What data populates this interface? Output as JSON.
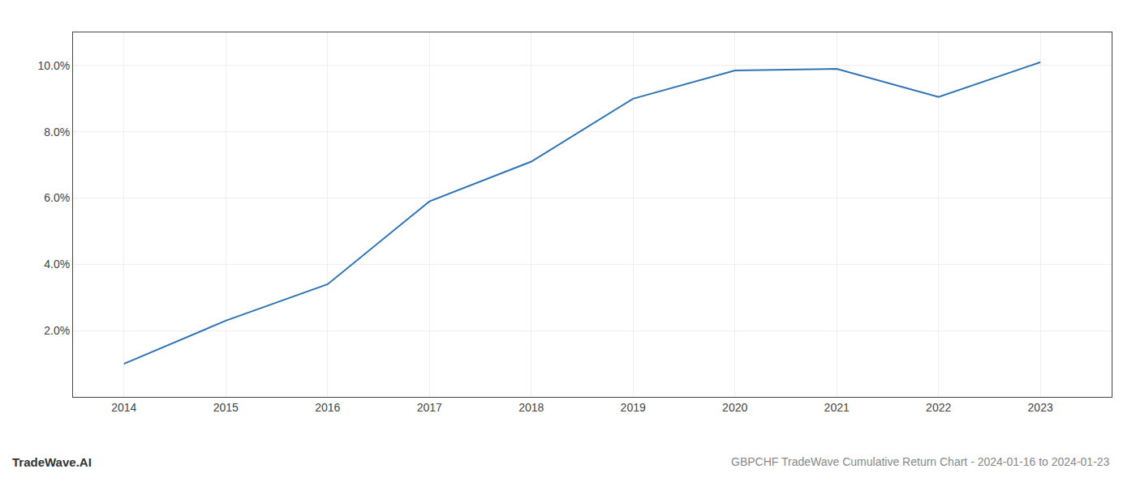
{
  "chart_data": {
    "type": "line",
    "title": "GBPCHF TradeWave Cumulative Return Chart - 2024-01-16 to 2024-01-23",
    "annotations": [
      "TradeWave.AI"
    ],
    "x": [
      2014,
      2015,
      2016,
      2017,
      2018,
      2019,
      2020,
      2021,
      2022,
      2023
    ],
    "values": [
      1.0,
      2.3,
      3.4,
      5.9,
      7.1,
      9.0,
      9.85,
      9.9,
      9.05,
      10.1
    ],
    "color": "#2e74b5",
    "xlim": [
      2013.5,
      2023.7
    ],
    "xticks": [
      2014,
      2015,
      2016,
      2017,
      2018,
      2019,
      2020,
      2021,
      2022,
      2023
    ],
    "ylim": [
      0,
      11
    ],
    "yticks": [
      {
        "value": 2.0,
        "label": "2.0%"
      },
      {
        "value": 4.0,
        "label": "4.0%"
      },
      {
        "value": 6.0,
        "label": "6.0%"
      },
      {
        "value": 8.0,
        "label": "8.0%"
      },
      {
        "value": 10.0,
        "label": "10.0%"
      }
    ],
    "grid": true
  }
}
